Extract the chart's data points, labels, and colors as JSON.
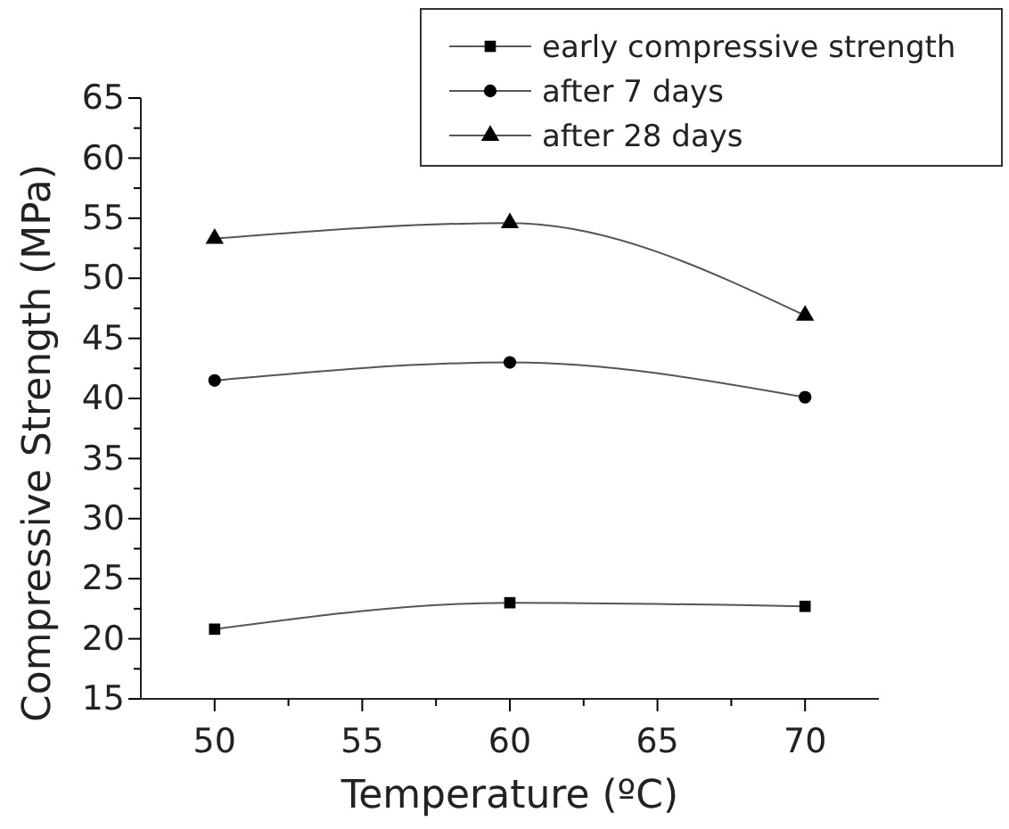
{
  "chart_data": {
    "type": "line",
    "xlabel": "Temperature (ºC)",
    "ylabel": "Compressive Strength (MPa)",
    "x": [
      50,
      60,
      70
    ],
    "xlim": [
      47.5,
      72.5
    ],
    "xticks": [
      50,
      {
        "value": 52.5,
        "label": null
      },
      55,
      {
        "value": 57.5,
        "label": null
      },
      60,
      {
        "value": 62.5,
        "label": null
      },
      65,
      {
        "value": 67.5,
        "label": null
      },
      70
    ],
    "ylim": [
      15,
      65
    ],
    "yticks": [
      15,
      {
        "value": 17.5,
        "label": null
      },
      20,
      {
        "value": 22.5,
        "label": null
      },
      25,
      {
        "value": 27.5,
        "label": null
      },
      30,
      {
        "value": 32.5,
        "label": null
      },
      35,
      {
        "value": 37.5,
        "label": null
      },
      40,
      {
        "value": 42.5,
        "label": null
      },
      45,
      {
        "value": 47.5,
        "label": null
      },
      50,
      {
        "value": 52.5,
        "label": null
      },
      55,
      {
        "value": 57.5,
        "label": null
      },
      60,
      {
        "value": 62.5,
        "label": null
      },
      65
    ],
    "legend": "top right",
    "grid": false,
    "series": [
      {
        "name": "early compressive strength",
        "color": "#000000",
        "marker": "square",
        "values": [
          20.8,
          23.0,
          22.7
        ]
      },
      {
        "name": "after 7 days",
        "color": "#000000",
        "marker": "circle",
        "values": [
          41.5,
          43.0,
          40.1
        ]
      },
      {
        "name": "after 28 days",
        "color": "#000000",
        "marker": "triangle",
        "values": [
          53.3,
          54.6,
          46.9
        ]
      }
    ]
  }
}
